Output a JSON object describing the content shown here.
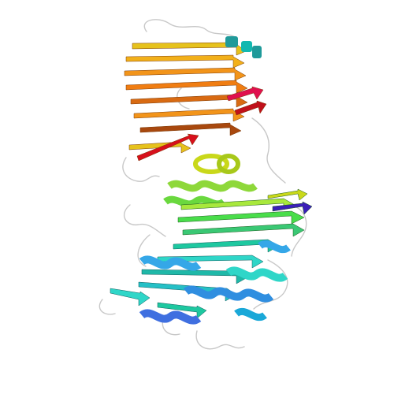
{
  "image": {
    "subject": "protein-ribbon-structure",
    "background_color": "#ffffff",
    "coloring_scheme": "rainbow",
    "palette": {
      "violet": "#3b1fb8",
      "blue": "#3f6fe0",
      "sky": "#35a7e8",
      "cyan": "#2fd6c8",
      "teal": "#1ec8a0",
      "green": "#49dd4a",
      "lime": "#a8e83c",
      "yellow": "#e6c21c",
      "orange": "#f2941a",
      "dark-orange": "#d86a12",
      "brown": "#a8480e",
      "red": "#d7101c",
      "crimson": "#e0104e",
      "teal-dark": "#1f9a9a",
      "coil": "#c8c8c8"
    }
  }
}
